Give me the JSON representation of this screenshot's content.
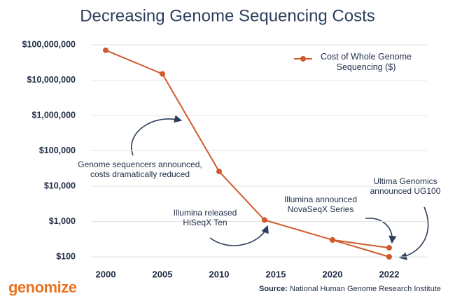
{
  "chart_data": {
    "type": "line",
    "title": "Decreasing Genome Sequencing Costs",
    "log_y": true,
    "grid": true,
    "legend": "upper right",
    "ylim": [
      100,
      100000000
    ],
    "yticks": [
      {
        "value": 100,
        "label": "$100"
      },
      {
        "value": 1000,
        "label": "$1,000"
      },
      {
        "value": 10000,
        "label": "$10,000"
      },
      {
        "value": 100000,
        "label": "$100,000"
      },
      {
        "value": 1000000,
        "label": "$1,000,000"
      },
      {
        "value": 10000000,
        "label": "$10,000,000"
      },
      {
        "value": 100000000,
        "label": "$100,000,000"
      }
    ],
    "xticks": [
      2000,
      2005,
      2010,
      2015,
      2020,
      2022
    ],
    "series": [
      {
        "name": "Cost of Whole Genome Sequencing ($)",
        "color": "#cf5a2c",
        "x": [
          2000,
          2005,
          2010,
          2014,
          2020,
          2022
        ],
        "values": [
          70000000,
          15000000,
          26000,
          1100,
          300,
          180
        ]
      },
      {
        "color": "#cf5a2c",
        "x": [
          2020,
          2022
        ],
        "values": [
          300,
          100
        ]
      }
    ],
    "annotations": [
      "Genome sequencers announced, costs dramatically reduced",
      "Illumina released HiSeqX Ten",
      "Illumina announced NovaSeqX Series",
      "Ultima Genomics announced UG100"
    ],
    "source_label": "Source:",
    "source": "National Human Genome Research Institute"
  },
  "logo": "genomize"
}
